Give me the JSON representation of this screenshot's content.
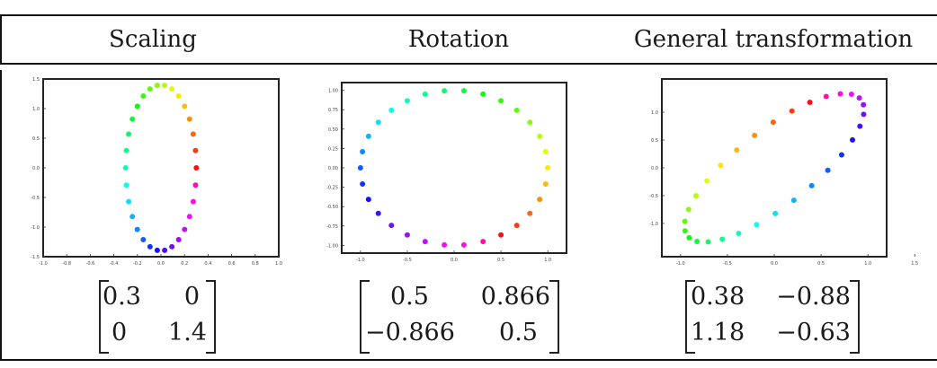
{
  "headers": [
    "Scaling",
    "Rotation",
    "General transformation"
  ],
  "matrices": [
    {
      "rows": [
        [
          "0.3",
          "0"
        ],
        [
          "0",
          "1.4"
        ]
      ]
    },
    {
      "rows": [
        [
          "0.5",
          "0.866"
        ],
        [
          "−0.866",
          "0.5"
        ]
      ]
    },
    {
      "rows": [
        [
          "0.38",
          "−0.88"
        ],
        [
          "1.18",
          "−0.63"
        ]
      ]
    }
  ],
  "chart_data": [
    {
      "type": "scatter",
      "transform": [
        [
          0.3,
          0
        ],
        [
          0,
          1.4
        ]
      ],
      "points": 30,
      "xlim": [
        -1.0,
        1.0
      ],
      "ylim": [
        -1.5,
        1.5
      ],
      "xticks": [
        "-1.0",
        "-0.8",
        "-0.6",
        "-0.4",
        "-0.2",
        "0.0",
        "0.2",
        "0.4",
        "0.6",
        "0.8",
        "1.0"
      ],
      "yticks": [
        "-1.5",
        "-1.0",
        "-0.5",
        "0.0",
        "0.5",
        "1.0",
        "1.5"
      ],
      "color_scale": "rainbow"
    },
    {
      "type": "scatter",
      "transform": [
        [
          0.5,
          0.866
        ],
        [
          -0.866,
          0.5
        ]
      ],
      "points": 30,
      "xlim": [
        -1.2,
        1.2
      ],
      "ylim": [
        -1.1,
        1.1
      ],
      "xticks": [
        "-1.0",
        "-0.5",
        "0.0",
        "0.5",
        "1.0"
      ],
      "yticks": [
        "-1.00",
        "-0.75",
        "-0.50",
        "-0.25",
        "0.00",
        "0.25",
        "0.50",
        "0.75",
        "1.00"
      ],
      "color_scale": "rainbow"
    },
    {
      "type": "scatter",
      "transform": [
        [
          0.38,
          -0.88
        ],
        [
          1.18,
          -0.63
        ]
      ],
      "points": 30,
      "xlim": [
        -1.2,
        1.2
      ],
      "ylim": [
        -1.6,
        1.6
      ],
      "xticks": [
        "-1.0",
        "-0.5",
        "0.0",
        "0.5",
        "1.0",
        "1.5"
      ],
      "yticks": [
        "-1.0",
        "-0.5",
        "0.0",
        "0.5",
        "1.0"
      ],
      "color_scale": "rainbow"
    }
  ]
}
